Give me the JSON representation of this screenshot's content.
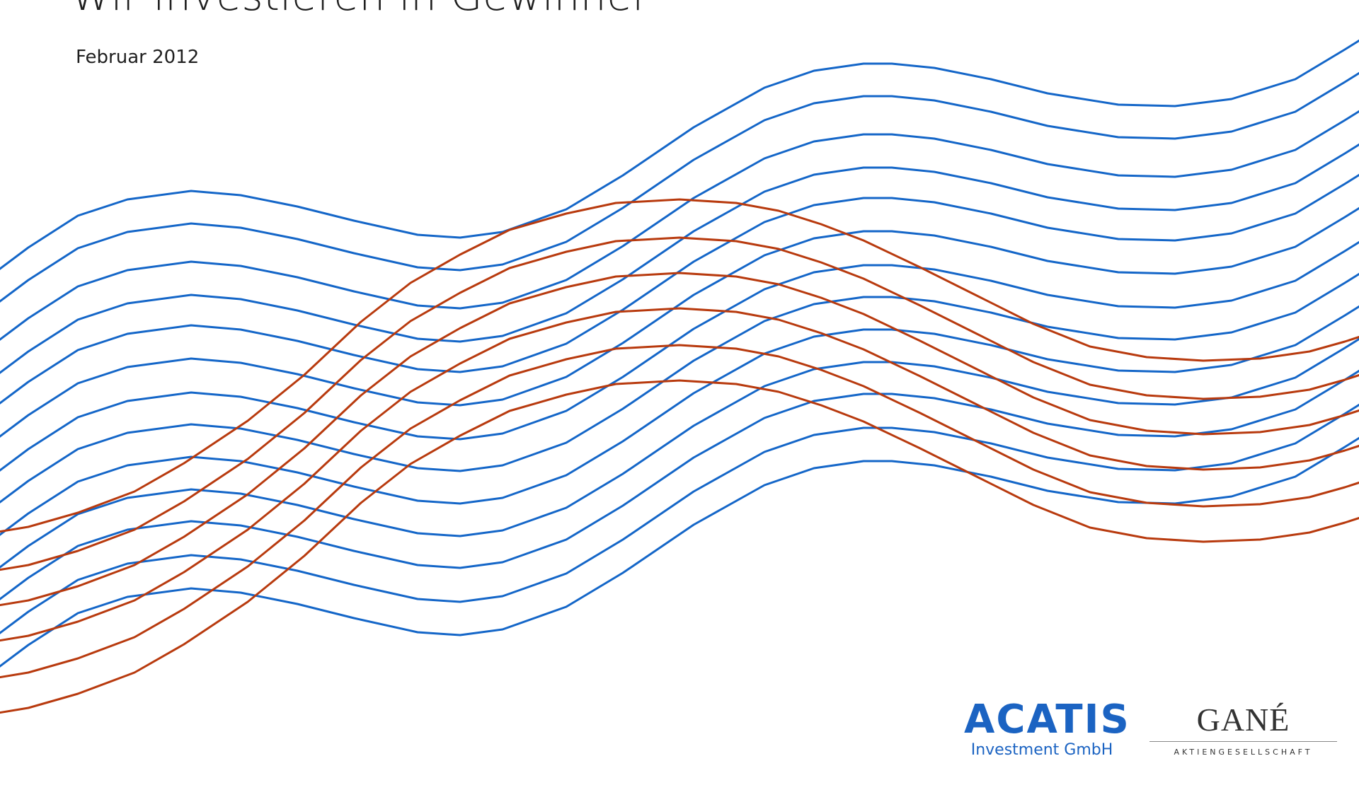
{
  "header": {
    "title": "Wir investieren in Gewinner",
    "date": "Februar 2012"
  },
  "colors": {
    "background": "#ffffff",
    "blue_lines": "#1466c8",
    "orange_lines": "#b83a0e",
    "acatis_brand": "#1b63c2",
    "gane_brand": "#333333"
  },
  "logos": {
    "acatis": {
      "name": "ACATIS",
      "subtitle": "Investment GmbH"
    },
    "gane": {
      "name": "GANÉ",
      "subtitle": "AKTIENGESELLSCHAFT"
    }
  }
}
